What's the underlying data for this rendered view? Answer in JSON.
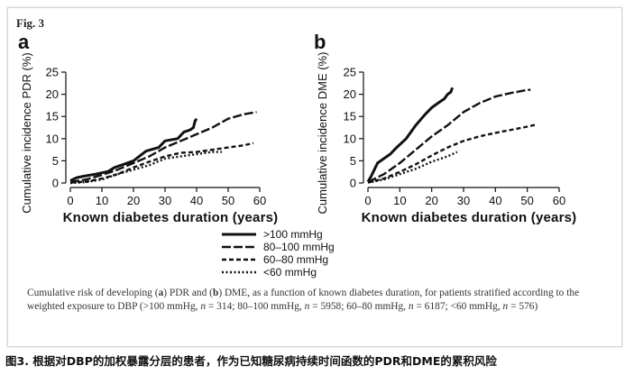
{
  "figure_label": "Fig. 3",
  "caption": {
    "part1": "Cumulative risk of developing (",
    "a": "a",
    "part2": ") PDR and (",
    "b": "b",
    "part3": ") DME, as a function of known diabetes duration, for patients stratified according to the weighted exposure to DBP (>100 mmHg, ",
    "n": "n",
    "n1": " = 314; 80–100 mmHg, ",
    "n2": " = 5958; 60–80 mmHg, ",
    "n3": " = 6187; <60 mmHg, ",
    "n4": " = 576)"
  },
  "footer_cn": "图3. 根据对DBP的加权暴露分层的患者，作为已知糖尿病持续时间函数的PDR和DME的累积风险",
  "legend": [
    {
      "label": ">100 mmHg",
      "style": "solid"
    },
    {
      "label": "80–100 mmHg",
      "style": "long-dash"
    },
    {
      "label": "60–80 mmHg",
      "style": "dash"
    },
    {
      "label": "<60 mmHg",
      "style": "dot"
    }
  ],
  "chart_data": [
    {
      "panel": "a",
      "type": "line",
      "xlabel": "Known diabetes duration (years)",
      "ylabel": "Cumulative incidence PDR (%)",
      "xlim": [
        0,
        60
      ],
      "ylim": [
        0,
        25
      ],
      "xticks": [
        0,
        10,
        20,
        30,
        40,
        50,
        60
      ],
      "yticks": [
        0,
        5,
        10,
        15,
        20,
        25
      ],
      "series": [
        {
          "name": ">100 mmHg",
          "x": [
            0,
            2,
            4,
            8,
            12,
            14,
            18,
            20,
            24,
            28,
            30,
            34,
            36,
            38,
            39,
            39.5,
            40
          ],
          "y": [
            0.5,
            1.2,
            1.5,
            2,
            2.6,
            3.5,
            4.5,
            5,
            7.2,
            8,
            9.5,
            10,
            11.5,
            12,
            12.5,
            14,
            14.5
          ]
        },
        {
          "name": "80–100 mmHg",
          "x": [
            0,
            5,
            10,
            15,
            20,
            25,
            30,
            35,
            40,
            45,
            50,
            55,
            59
          ],
          "y": [
            0.2,
            0.8,
            1.8,
            3,
            4.5,
            6,
            8,
            9.5,
            11,
            12.5,
            14.5,
            15.5,
            16
          ]
        },
        {
          "name": "60–80 mmHg",
          "x": [
            0,
            5,
            10,
            15,
            20,
            25,
            30,
            35,
            40,
            45,
            50,
            55,
            58
          ],
          "y": [
            0.1,
            0.3,
            1,
            2,
            3.5,
            4.8,
            6,
            6.8,
            7,
            7.5,
            8,
            8.5,
            9
          ]
        },
        {
          "name": "<60 mmHg",
          "x": [
            0,
            5,
            10,
            15,
            20,
            25,
            30,
            35,
            40,
            45,
            48
          ],
          "y": [
            0,
            0.2,
            0.8,
            2,
            3,
            4,
            5.5,
            6,
            6.5,
            7,
            7
          ]
        }
      ]
    },
    {
      "panel": "b",
      "type": "line",
      "xlabel": "Known diabetes duration (years)",
      "ylabel": "Cumulative incidence DME (%)",
      "xlim": [
        0,
        60
      ],
      "ylim": [
        0,
        25
      ],
      "xticks": [
        0,
        10,
        20,
        30,
        40,
        50,
        60
      ],
      "yticks": [
        0,
        5,
        10,
        15,
        20,
        25
      ],
      "series": [
        {
          "name": ">100 mmHg",
          "x": [
            0,
            1,
            2,
            3,
            5,
            7,
            9,
            12,
            15,
            18,
            20,
            22,
            24,
            25,
            26,
            26.5
          ],
          "y": [
            0.3,
            1.5,
            3,
            4.5,
            5.5,
            6.5,
            8,
            10,
            13,
            15.5,
            17,
            18,
            19,
            20,
            20.5,
            21.5
          ]
        },
        {
          "name": "80–100 mmHg",
          "x": [
            0,
            5,
            10,
            15,
            20,
            25,
            30,
            35,
            40,
            45,
            50,
            51
          ],
          "y": [
            0.2,
            2,
            4.5,
            7.5,
            10.5,
            13,
            16,
            18,
            19.5,
            20.3,
            21,
            21
          ]
        },
        {
          "name": "60–80 mmHg",
          "x": [
            0,
            5,
            10,
            15,
            20,
            25,
            30,
            35,
            40,
            45,
            50,
            53
          ],
          "y": [
            0.1,
            1,
            2.5,
            4.2,
            6.2,
            8,
            9.5,
            10.5,
            11.3,
            12,
            12.7,
            13.2
          ]
        },
        {
          "name": "<60 mmHg",
          "x": [
            0,
            5,
            10,
            15,
            20,
            25,
            28
          ],
          "y": [
            0.1,
            0.8,
            2,
            3.2,
            4.8,
            6,
            7
          ]
        }
      ]
    }
  ]
}
